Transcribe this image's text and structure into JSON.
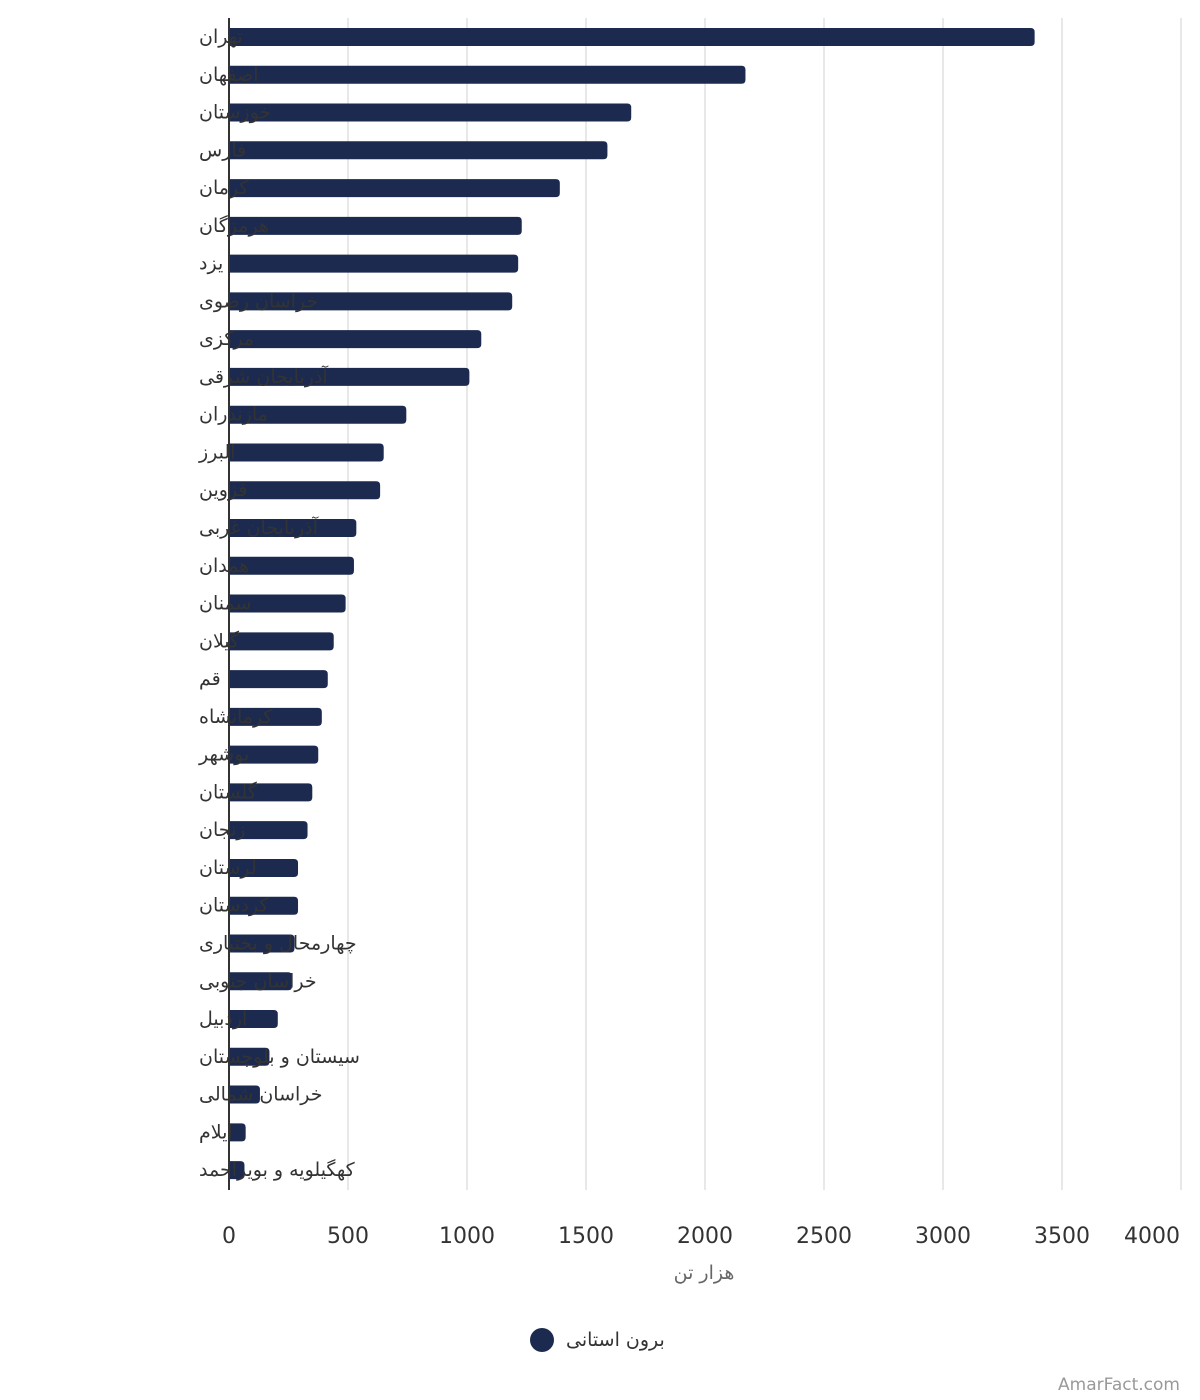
{
  "chart_data": {
    "type": "bar",
    "orientation": "horizontal",
    "categories": [
      "تهران",
      "اصفهان",
      "خوزستان",
      "فارس",
      "کرمان",
      "هرمزگان",
      "یزد",
      "خراسان رضوی",
      "مرکزی",
      "آذربایجان شرقی",
      "مازندران",
      "البرز",
      "قزوین",
      "آذربایجان غربی",
      "همدان",
      "سمنان",
      "گیلان",
      "قم",
      "کرمانشاه",
      "بوشهر",
      "گلستان",
      "زنجان",
      "لرستان",
      "کردستان",
      "چهارمحال و بختیاری",
      "خراسان جنوبی",
      "اردبیل",
      "سیستان و بلوچستان",
      "خراسان شمالی",
      "ایلام",
      "کهگیلویه و بویراحمد"
    ],
    "series": [
      {
        "name": "برون استانی",
        "color": "#1b2a4e",
        "values": [
          3385,
          2170,
          1690,
          1590,
          1390,
          1230,
          1215,
          1190,
          1060,
          1010,
          745,
          650,
          635,
          535,
          525,
          490,
          440,
          415,
          390,
          375,
          350,
          330,
          290,
          290,
          275,
          265,
          205,
          170,
          130,
          70,
          65
        ]
      }
    ],
    "xlabel": "هزار تن",
    "xlim": [
      0,
      4000
    ],
    "xticks": [
      0,
      500,
      1000,
      1500,
      2000,
      2500,
      3000,
      3500,
      4000
    ],
    "grid": "vertical",
    "legend": "bottom-center"
  },
  "watermark": "AmarFact.com"
}
